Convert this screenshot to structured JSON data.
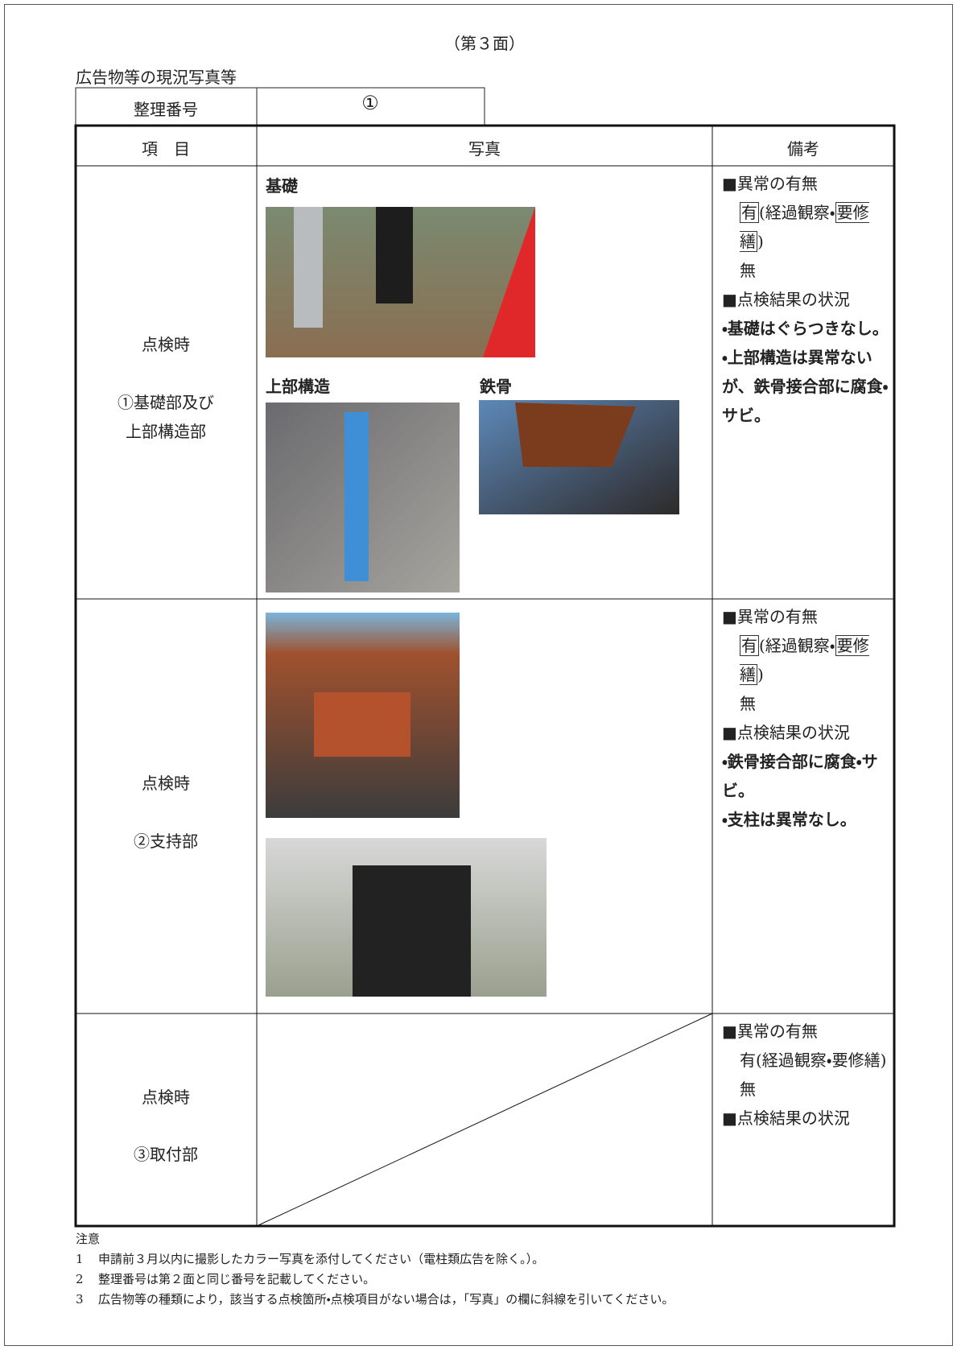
{
  "page_label": "（第３面）",
  "section_title": "広告物等の現況写真等",
  "id_row": {
    "label": "整理番号",
    "value": "①"
  },
  "table": {
    "headers": [
      "項　目",
      "写真",
      "備考"
    ],
    "rows": [
      {
        "item": [
          "点検時",
          "①基礎部及び",
          "上部構造部"
        ],
        "photo_captions": [
          "基礎",
          "上部構造",
          "鉄骨"
        ],
        "remarks": {
          "heading": "■異常の有無",
          "option_parts": [
            "有",
            "(経過観察・",
            "要修繕",
            ")"
          ],
          "selected": [
            true,
            false,
            true,
            false
          ],
          "none": "無",
          "result_heading": "■点検結果の状況",
          "findings": [
            "・基礎はぐらつきなし。",
            "・上部構造は異常ないが、鉄骨接合部に腐食・サビ。"
          ]
        }
      },
      {
        "item": [
          "点検時",
          "②支持部"
        ],
        "remarks": {
          "heading": "■異常の有無",
          "option_parts": [
            "有",
            "(経過観察・",
            "要修繕",
            ")"
          ],
          "selected": [
            true,
            false,
            true,
            false
          ],
          "none": "無",
          "result_heading": "■点検結果の状況",
          "findings": [
            "・鉄骨接合部に腐食・サビ。",
            "・支柱は異常なし。"
          ]
        }
      },
      {
        "item": [
          "点検時",
          "③取付部"
        ],
        "remarks": {
          "heading": "■異常の有無",
          "option_parts": [
            "有",
            "(経過観察・",
            "要修繕",
            ")"
          ],
          "selected": [
            false,
            false,
            false,
            false
          ],
          "none": "無",
          "result_heading": "■点検結果の状況",
          "findings": []
        }
      }
    ]
  },
  "notes": {
    "heading": "注意",
    "items": [
      {
        "number": "1",
        "text": "申請前３月以内に撮影したカラー写真を添付してください（電柱類広告を除く。）。"
      },
      {
        "number": "2",
        "text": "整理番号は第２面と同じ番号を記載してください。"
      },
      {
        "number": "3",
        "text": "広告物等の種類により，該当する点検箇所・点検項目がない場合は，「写真」の欄に斜線を引いてください。"
      }
    ]
  }
}
